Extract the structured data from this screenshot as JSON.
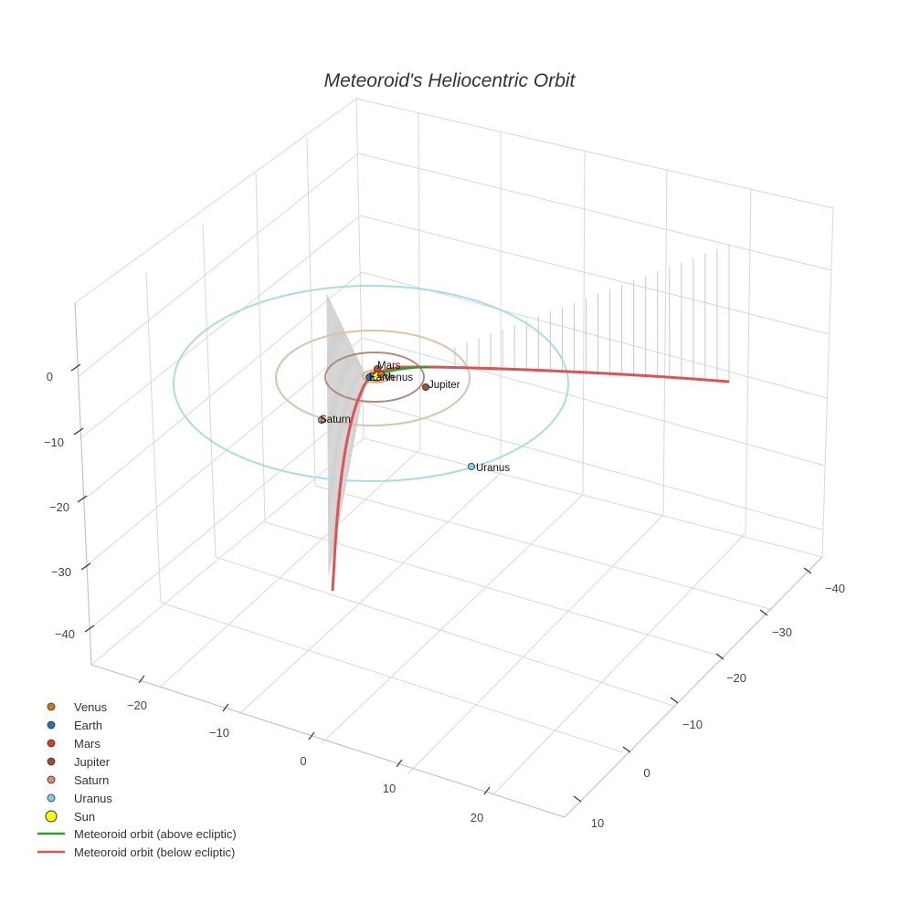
{
  "chart_data": {
    "type": "scatter3d",
    "title": "Meteoroid's Heliocentric Orbit",
    "axes": {
      "x_ticks": [
        "−40",
        "−30",
        "−20",
        "−10",
        "0",
        "10"
      ],
      "y_ticks": [
        "−20",
        "−10",
        "0",
        "10",
        "20"
      ],
      "z_ticks": [
        "0",
        "−10",
        "−20",
        "−30",
        "−40"
      ]
    },
    "planets": [
      {
        "name": "Venus",
        "color": "#d2761b"
      },
      {
        "name": "Earth",
        "color": "#1f77b4"
      },
      {
        "name": "Mars",
        "color": "#d2431b"
      },
      {
        "name": "Jupiter",
        "color": "#a0522d"
      },
      {
        "name": "Saturn",
        "color": "#d2916b"
      },
      {
        "name": "Uranus",
        "color": "#89c9dd"
      }
    ],
    "sun": {
      "name": "Sun",
      "color": "#ffff00"
    },
    "orbit_colors": {
      "jupiter": "#b08a7c",
      "saturn": "#dcc3a8",
      "uranus": "#aadce8"
    },
    "series": [
      {
        "name": "Meteoroid orbit (above ecliptic)",
        "color": "#2ca02c"
      },
      {
        "name": "Meteoroid orbit (below ecliptic)",
        "color": "#e05252"
      }
    ],
    "legend_position": "bottom-left",
    "grid": true
  }
}
